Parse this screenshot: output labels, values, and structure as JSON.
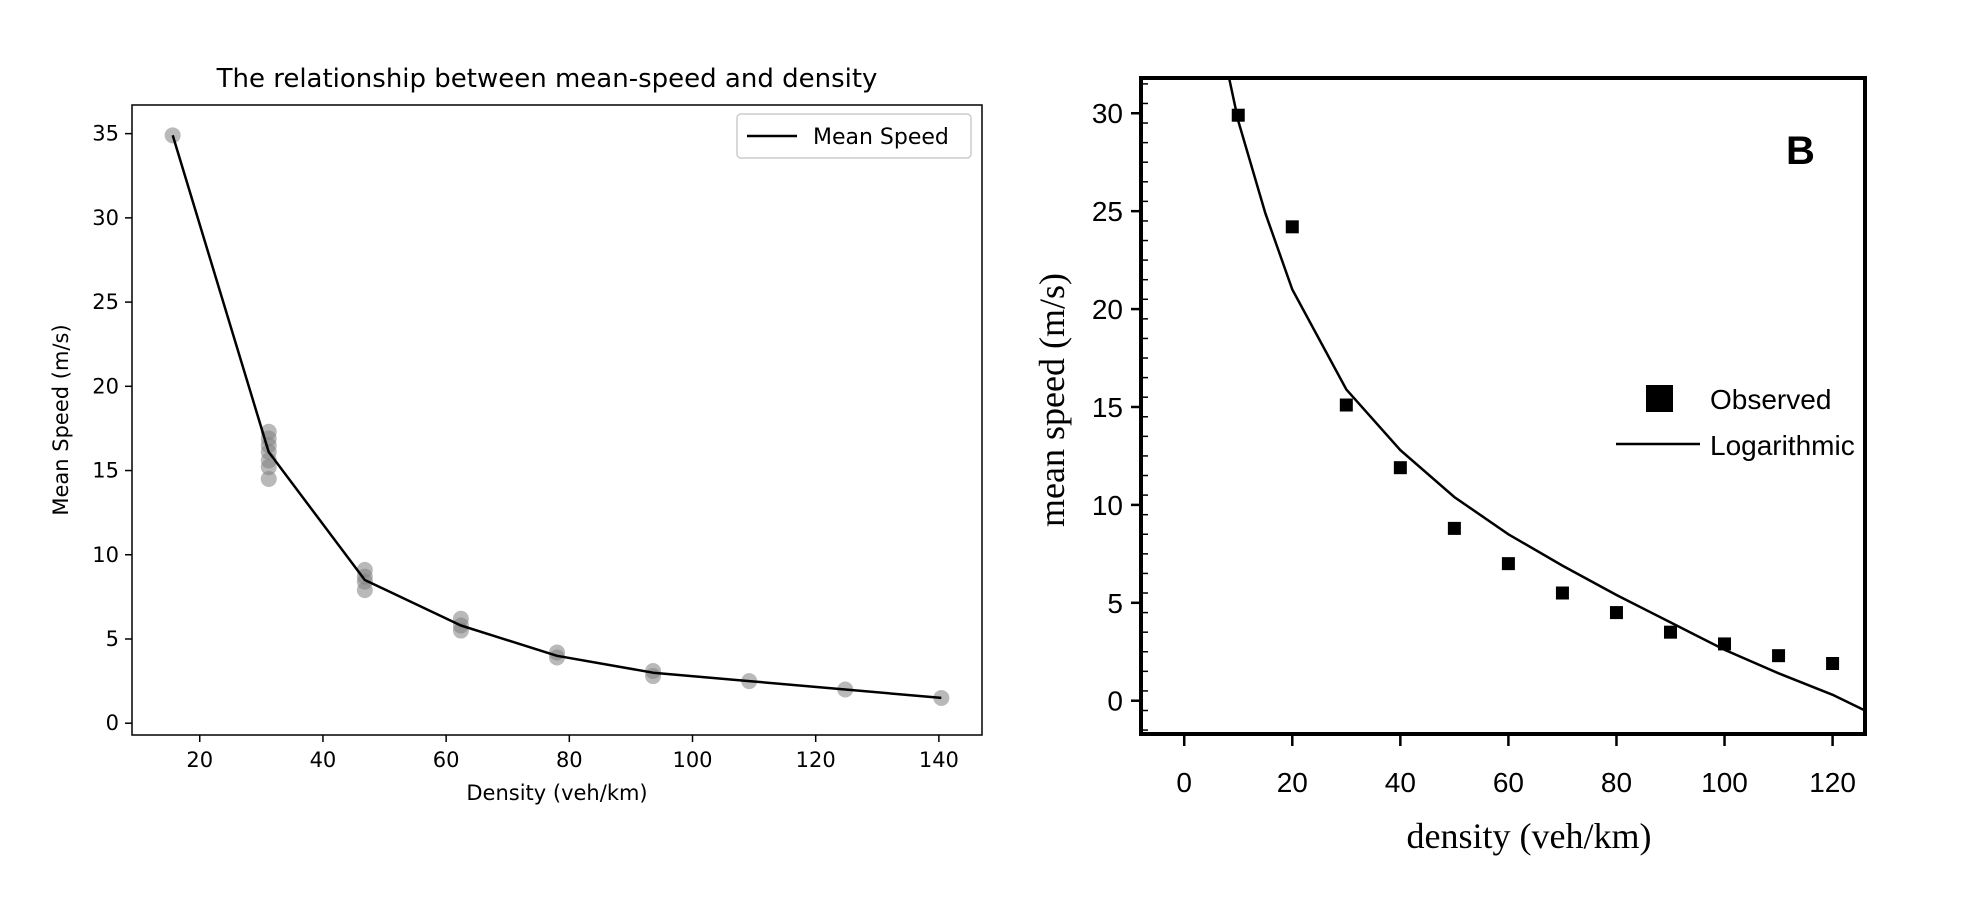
{
  "chart_data": [
    {
      "type": "scatter",
      "title": "The relationship between mean-speed and density",
      "xlabel": "Density (veh/km)",
      "ylabel": "Mean Speed (m/s)",
      "xlim": [
        9,
        147
      ],
      "ylim": [
        -0.7,
        36.7
      ],
      "xticks": [
        20,
        40,
        60,
        80,
        100,
        120,
        140
      ],
      "yticks": [
        0,
        5,
        10,
        15,
        20,
        25,
        30,
        35
      ],
      "grid": false,
      "legend_position": "top-right",
      "scatter_color": "#808080",
      "points": [
        {
          "x": 15.6,
          "y": 34.9
        },
        {
          "x": 31.2,
          "y": 17.3
        },
        {
          "x": 31.2,
          "y": 16.9
        },
        {
          "x": 31.2,
          "y": 16.5
        },
        {
          "x": 31.2,
          "y": 16.1
        },
        {
          "x": 31.2,
          "y": 15.6
        },
        {
          "x": 31.2,
          "y": 15.2
        },
        {
          "x": 31.2,
          "y": 14.5
        },
        {
          "x": 46.8,
          "y": 9.1
        },
        {
          "x": 46.8,
          "y": 8.7
        },
        {
          "x": 46.8,
          "y": 8.4
        },
        {
          "x": 46.8,
          "y": 7.9
        },
        {
          "x": 62.4,
          "y": 6.2
        },
        {
          "x": 62.4,
          "y": 5.8
        },
        {
          "x": 62.4,
          "y": 5.5
        },
        {
          "x": 78.0,
          "y": 4.2
        },
        {
          "x": 78.0,
          "y": 3.9
        },
        {
          "x": 93.6,
          "y": 3.1
        },
        {
          "x": 93.6,
          "y": 2.8
        },
        {
          "x": 109.2,
          "y": 2.5
        },
        {
          "x": 124.8,
          "y": 2.0
        },
        {
          "x": 140.4,
          "y": 1.5
        }
      ],
      "series": [
        {
          "name": "Mean Speed",
          "color": "#000000",
          "x": [
            15.6,
            31.2,
            46.8,
            62.4,
            78.0,
            93.6,
            109.2,
            124.8,
            140.4
          ],
          "y": [
            34.9,
            16.1,
            8.5,
            5.8,
            4.0,
            3.0,
            2.5,
            2.0,
            1.5
          ]
        }
      ]
    },
    {
      "type": "scatter",
      "title": "",
      "panel_label": "B",
      "xlabel": "density (veh/km)",
      "ylabel": "mean speed (m/s)",
      "xlim": [
        -8,
        126
      ],
      "ylim": [
        -1.7,
        31.8
      ],
      "xticks": [
        0,
        20,
        40,
        60,
        80,
        100,
        120
      ],
      "yticks": [
        0,
        5,
        10,
        15,
        20,
        25,
        30
      ],
      "grid": false,
      "legend_position": "right",
      "series": [
        {
          "name": "Observed",
          "marker": "square",
          "x": [
            10,
            20,
            30,
            40,
            50,
            60,
            70,
            80,
            90,
            100,
            110,
            120
          ],
          "y": [
            29.9,
            24.2,
            15.1,
            11.9,
            8.8,
            7.0,
            5.5,
            4.5,
            3.5,
            2.9,
            2.3,
            1.9
          ]
        },
        {
          "name": "Logarithmic",
          "type": "line",
          "x": [
            8.3,
            10,
            15,
            20,
            30,
            40,
            50,
            60,
            70,
            80,
            90,
            100,
            110,
            120,
            126
          ],
          "y": [
            31.8,
            29.6,
            24.9,
            21.0,
            15.9,
            12.8,
            10.4,
            8.5,
            6.9,
            5.4,
            4.0,
            2.6,
            1.4,
            0.3,
            -0.5
          ]
        }
      ]
    }
  ]
}
